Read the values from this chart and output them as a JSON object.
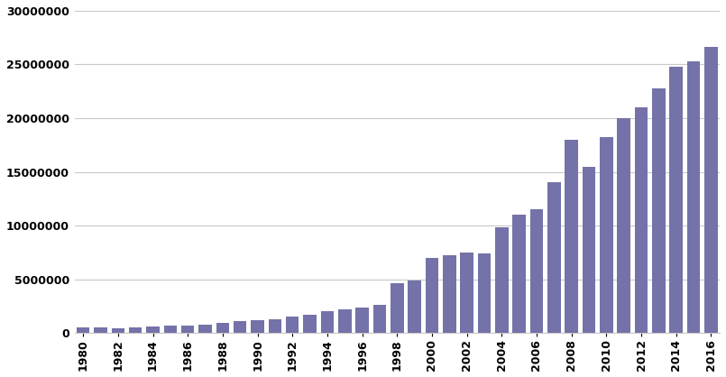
{
  "years": [
    1980,
    1981,
    1982,
    1983,
    1984,
    1985,
    1986,
    1987,
    1988,
    1989,
    1990,
    1991,
    1992,
    1993,
    1994,
    1995,
    1996,
    1997,
    1998,
    1999,
    2000,
    2001,
    2002,
    2003,
    2004,
    2005,
    2006,
    2007,
    2008,
    2009,
    2010,
    2011,
    2012,
    2013,
    2014,
    2015,
    2016
  ],
  "values": [
    500000,
    550000,
    450000,
    480000,
    600000,
    650000,
    700000,
    800000,
    950000,
    1100000,
    1200000,
    1300000,
    1500000,
    1700000,
    2000000,
    2200000,
    2400000,
    2600000,
    4600000,
    4900000,
    7000000,
    7200000,
    7500000,
    7400000,
    9800000,
    11000000,
    11500000,
    14000000,
    18000000,
    15500000,
    18200000,
    20000000,
    21000000,
    22800000,
    24800000,
    25300000,
    26600000
  ],
  "bar_color": "#7472a8",
  "ylim": [
    0,
    30000000
  ],
  "yticks": [
    0,
    5000000,
    10000000,
    15000000,
    20000000,
    25000000,
    30000000
  ],
  "ytick_labels": [
    "0",
    "5000000",
    "10000000",
    "15000000",
    "20000000",
    "25000000",
    "30000000"
  ],
  "even_years": [
    1980,
    1982,
    1984,
    1986,
    1988,
    1990,
    1992,
    1994,
    1996,
    1998,
    2000,
    2002,
    2004,
    2006,
    2008,
    2010,
    2012,
    2014,
    2016
  ],
  "background_color": "#ffffff",
  "grid_color": "#c8c8c8"
}
